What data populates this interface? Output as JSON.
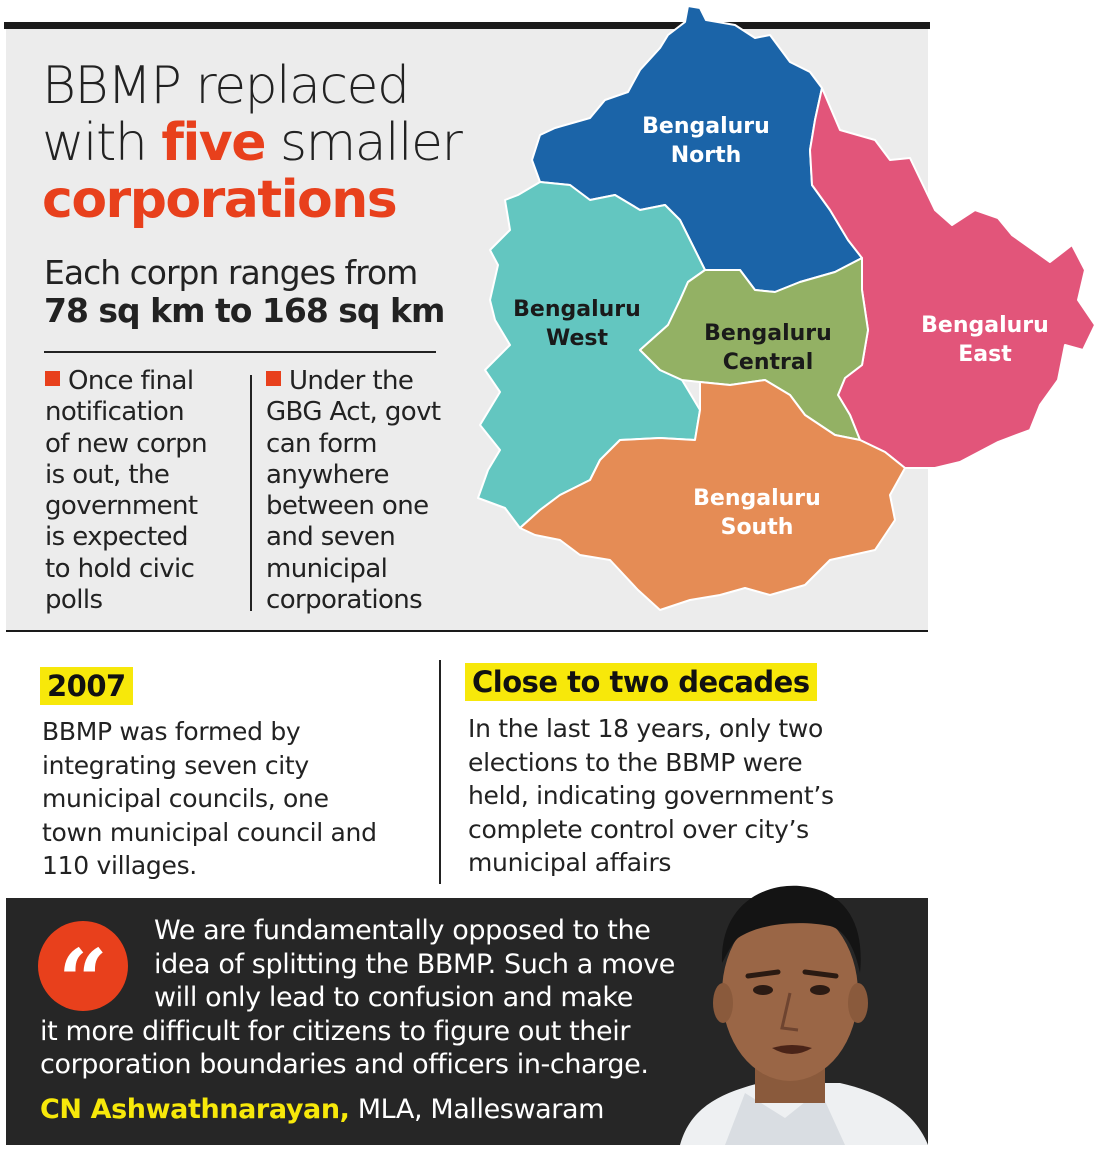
{
  "headline": {
    "line1": "BBMP replaced",
    "line2_pre": "with ",
    "line2_accent": "five",
    "line2_post": " smaller",
    "line3": "corporations"
  },
  "subhead": {
    "line1": "Each corpn ranges from",
    "line2": "78 sq km to 168 sq km"
  },
  "notes": [
    {
      "lines": [
        "Once final",
        "notification",
        "of new corpn",
        "is out, the",
        "government",
        "is expected",
        "to hold civic",
        "polls"
      ]
    },
    {
      "lines": [
        "Under the",
        "GBG Act, govt",
        "can form",
        "anywhere",
        "between one",
        "and seven",
        "municipal",
        "corporations"
      ]
    }
  ],
  "map": {
    "regions": [
      {
        "name": "Bengaluru North",
        "line1": "Bengaluru",
        "line2": "North",
        "color": "#1b64a8",
        "label_color": "#ffffff"
      },
      {
        "name": "Bengaluru East",
        "line1": "Bengaluru",
        "line2": "East",
        "color": "#e2557a",
        "label_color": "#ffffff"
      },
      {
        "name": "Bengaluru West",
        "line1": "Bengaluru",
        "line2": "West",
        "color": "#63c6c0",
        "label_color": "#1a1a1a"
      },
      {
        "name": "Bengaluru Central",
        "line1": "Bengaluru",
        "line2": "Central",
        "color": "#93b164",
        "label_color": "#1a1a1a"
      },
      {
        "name": "Bengaluru South",
        "line1": "Bengaluru",
        "line2": "South",
        "color": "#e58c55",
        "label_color": "#ffffff"
      }
    ]
  },
  "facts": [
    {
      "tag": "2007",
      "lines": [
        "BBMP was formed by",
        "integrating seven city",
        "municipal councils, one",
        "town municipal council and",
        "110  villages."
      ]
    },
    {
      "tag": "Close to two decades",
      "lines": [
        "In the last 18 years, only two",
        "elections to the BBMP were",
        "held, indicating government’s",
        "complete control over city’s",
        "municipal affairs"
      ]
    }
  ],
  "quote": {
    "icon": "quote-icon",
    "icon_glyph": "“",
    "lines": [
      "We are fundamentally opposed to the",
      "idea of splitting the BBMP. Such a move",
      "will only lead to confusion and make",
      "it more difficult for citizens to figure out their",
      "corporation boundaries and officers in-charge."
    ],
    "speaker": "CN Ashwathnarayan,",
    "role": " MLA, Malleswaram"
  },
  "colors": {
    "accent": "#e8401c",
    "highlight": "#f7e80a",
    "quote_bg": "#262626",
    "panel_bg": "#ececec"
  }
}
